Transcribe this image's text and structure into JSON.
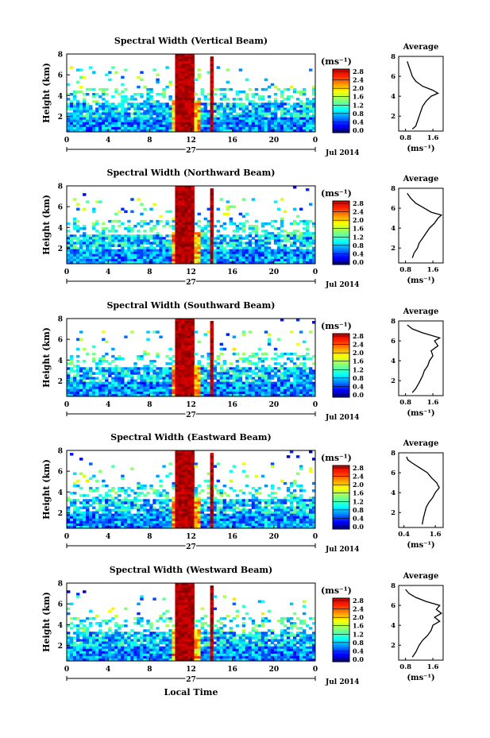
{
  "chart_data": [
    {
      "type": "heatmap",
      "title": "Spectral Width (Vertical Beam)",
      "xlabel": "",
      "ylabel": "Height (km)",
      "xticks": [
        "0",
        "4",
        "8",
        "12",
        "16",
        "20",
        "0"
      ],
      "xlim": [
        0,
        24
      ],
      "yticks": [
        "2",
        "4",
        "6",
        "8"
      ],
      "ylim": [
        0.5,
        8
      ],
      "date_day": "27",
      "date_month": "Jul 2014",
      "colorbar": {
        "title": "(ms⁻¹)",
        "ticks": [
          "0.0",
          "0.4",
          "0.8",
          "1.2",
          "1.6",
          "2.0",
          "2.4",
          "2.8"
        ],
        "range": [
          0.0,
          2.8
        ]
      },
      "average_profile": {
        "title": "Average",
        "xlabel": "(ms⁻¹)",
        "xticks": [
          "0.8",
          "1.6"
        ],
        "xlim": [
          0.6,
          1.9
        ],
        "yticks": [
          "2",
          "4",
          "6",
          "8"
        ],
        "height": [
          0.7,
          1.0,
          1.5,
          2.0,
          2.5,
          3.0,
          3.5,
          4.0,
          4.3,
          4.6,
          5.0,
          5.5,
          6.0,
          6.5,
          7.0,
          7.5
        ],
        "width": [
          1.0,
          1.1,
          1.15,
          1.2,
          1.25,
          1.3,
          1.4,
          1.55,
          1.75,
          1.6,
          1.3,
          1.1,
          1.0,
          0.95,
          0.9,
          0.85
        ]
      }
    },
    {
      "type": "heatmap",
      "title": "Spectral Width (Northward Beam)",
      "xlabel": "",
      "ylabel": "Height (km)",
      "xticks": [
        "0",
        "4",
        "8",
        "12",
        "16",
        "20",
        "0"
      ],
      "xlim": [
        0,
        24
      ],
      "yticks": [
        "2",
        "4",
        "6",
        "8"
      ],
      "ylim": [
        0.5,
        8
      ],
      "date_day": "27",
      "date_month": "Jul 2014",
      "colorbar": {
        "title": "(ms⁻¹)",
        "ticks": [
          "0.0",
          "0.4",
          "0.8",
          "1.2",
          "1.6",
          "2.0",
          "2.4",
          "2.8"
        ],
        "range": [
          0.0,
          2.8
        ]
      },
      "average_profile": {
        "title": "Average",
        "xlabel": "(ms⁻¹)",
        "xticks": [
          "0.8",
          "1.6"
        ],
        "xlim": [
          0.6,
          1.9
        ],
        "yticks": [
          "2",
          "4",
          "6",
          "8"
        ],
        "height": [
          1.0,
          1.5,
          2.0,
          2.5,
          3.0,
          3.5,
          4.0,
          4.5,
          5.0,
          5.3,
          5.6,
          6.0,
          6.5,
          7.0,
          7.5
        ],
        "width": [
          1.0,
          1.05,
          1.15,
          1.2,
          1.3,
          1.4,
          1.5,
          1.65,
          1.75,
          1.85,
          1.55,
          1.35,
          1.1,
          0.95,
          0.85
        ]
      }
    },
    {
      "type": "heatmap",
      "title": "Spectral Width (Southward Beam)",
      "xlabel": "",
      "ylabel": "Height (km)",
      "xticks": [
        "0",
        "4",
        "8",
        "12",
        "16",
        "20",
        "0"
      ],
      "xlim": [
        0,
        24
      ],
      "yticks": [
        "2",
        "4",
        "6",
        "8"
      ],
      "ylim": [
        0.5,
        8
      ],
      "date_day": "27",
      "date_month": "Jul 2014",
      "colorbar": {
        "title": "(ms⁻¹)",
        "ticks": [
          "0.0",
          "0.4",
          "0.8",
          "1.2",
          "1.6",
          "2.0",
          "2.4",
          "2.8"
        ],
        "range": [
          0.0,
          2.8
        ]
      },
      "average_profile": {
        "title": "Average",
        "xlabel": "(ms⁻¹)",
        "xticks": [
          "0.8",
          "1.6"
        ],
        "xlim": [
          0.6,
          1.9
        ],
        "yticks": [
          "2",
          "4",
          "6",
          "8"
        ],
        "height": [
          0.8,
          1.2,
          1.8,
          2.5,
          3.0,
          3.5,
          4.0,
          4.5,
          5.0,
          5.5,
          6.0,
          6.3,
          6.8,
          7.2,
          7.6
        ],
        "width": [
          1.0,
          1.1,
          1.2,
          1.3,
          1.35,
          1.45,
          1.5,
          1.6,
          1.55,
          1.75,
          1.65,
          1.8,
          1.3,
          1.0,
          0.85
        ]
      }
    },
    {
      "type": "heatmap",
      "title": "Spectral Width (Eastward Beam)",
      "xlabel": "",
      "ylabel": "Height (km)",
      "xticks": [
        "0",
        "4",
        "8",
        "12",
        "16",
        "20",
        "0"
      ],
      "xlim": [
        0,
        24
      ],
      "yticks": [
        "2",
        "4",
        "6",
        "8"
      ],
      "ylim": [
        0.5,
        8
      ],
      "date_day": "27",
      "date_month": "Jul 2014",
      "colorbar": {
        "title": "(ms⁻¹)",
        "ticks": [
          "0.0",
          "0.4",
          "0.8",
          "1.2",
          "1.6",
          "2.0",
          "2.4",
          "2.8"
        ],
        "range": [
          0.0,
          2.8
        ]
      },
      "average_profile": {
        "title": "Average",
        "xlabel": "(ms⁻¹)",
        "xticks": [
          "0.4",
          "1.6"
        ],
        "xlim": [
          0.2,
          1.9
        ],
        "yticks": [
          "2",
          "4",
          "6",
          "8"
        ],
        "height": [
          0.8,
          1.5,
          2.0,
          2.5,
          3.0,
          3.5,
          4.0,
          4.5,
          5.0,
          5.5,
          6.0,
          6.5,
          7.0,
          7.3,
          7.6
        ],
        "width": [
          1.1,
          1.15,
          1.2,
          1.25,
          1.35,
          1.5,
          1.6,
          1.75,
          1.65,
          1.45,
          1.3,
          1.0,
          0.7,
          0.55,
          0.5
        ]
      }
    },
    {
      "type": "heatmap",
      "title": "Spectral Width (Westward Beam)",
      "xlabel": "Local Time",
      "ylabel": "Height (km)",
      "xticks": [
        "0",
        "4",
        "8",
        "12",
        "16",
        "20",
        "0"
      ],
      "xlim": [
        0,
        24
      ],
      "yticks": [
        "2",
        "4",
        "6",
        "8"
      ],
      "ylim": [
        0.5,
        8
      ],
      "date_day": "27",
      "date_month": "Jul 2014",
      "colorbar": {
        "title": "(ms⁻¹)",
        "ticks": [
          "0.0",
          "0.4",
          "0.8",
          "1.2",
          "1.6",
          "2.0",
          "2.4",
          "2.8"
        ],
        "range": [
          0.0,
          2.8
        ]
      },
      "average_profile": {
        "title": "Average",
        "xlabel": "(ms⁻¹)",
        "xticks": [
          "0.8",
          "1.6"
        ],
        "xlim": [
          0.6,
          1.9
        ],
        "yticks": [
          "2",
          "4",
          "6",
          "8"
        ],
        "height": [
          0.8,
          1.3,
          2.0,
          2.5,
          3.0,
          3.5,
          4.0,
          4.4,
          4.8,
          5.2,
          5.6,
          6.0,
          6.4,
          6.8,
          7.2,
          7.6
        ],
        "width": [
          1.0,
          1.1,
          1.2,
          1.3,
          1.45,
          1.55,
          1.6,
          1.8,
          1.65,
          1.85,
          1.7,
          1.8,
          1.4,
          1.1,
          0.9,
          0.8
        ]
      }
    }
  ]
}
